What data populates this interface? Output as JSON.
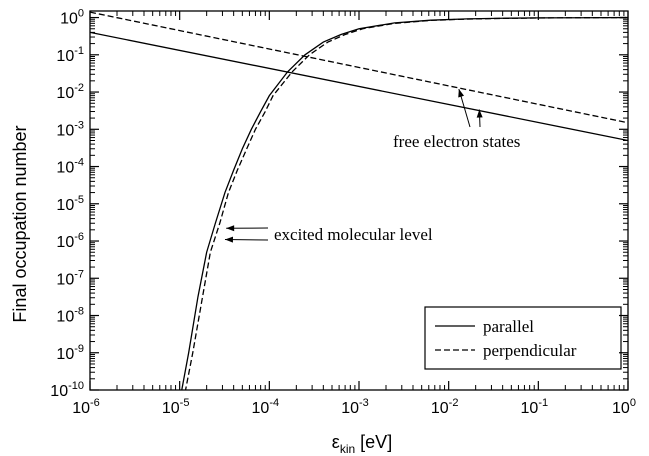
{
  "chart_data": {
    "type": "line",
    "xscale": "log",
    "yscale": "log",
    "xlim": [
      1e-06,
      1
    ],
    "ylim": [
      1e-10,
      1.5
    ],
    "x_ticks": [
      {
        "base": "10",
        "exp": "-6"
      },
      {
        "base": "10",
        "exp": "-5"
      },
      {
        "base": "10",
        "exp": "-4"
      },
      {
        "base": "10",
        "exp": "-3"
      },
      {
        "base": "10",
        "exp": "-2"
      },
      {
        "base": "10",
        "exp": "-1"
      },
      {
        "base": "10",
        "exp": "0"
      }
    ],
    "y_ticks": [
      {
        "base": "10",
        "exp": "-10"
      },
      {
        "base": "10",
        "exp": "-9"
      },
      {
        "base": "10",
        "exp": "-8"
      },
      {
        "base": "10",
        "exp": "-7"
      },
      {
        "base": "10",
        "exp": "-6"
      },
      {
        "base": "10",
        "exp": "-5"
      },
      {
        "base": "10",
        "exp": "-4"
      },
      {
        "base": "10",
        "exp": "-3"
      },
      {
        "base": "10",
        "exp": "-2"
      },
      {
        "base": "10",
        "exp": "-1"
      },
      {
        "base": "10",
        "exp": "0"
      }
    ],
    "xlabel": {
      "symbol": "ε",
      "sub": "kin",
      "unit": " [eV]"
    },
    "ylabel": "Final occupation number",
    "grid": false,
    "legend": {
      "placement": "bottom-right",
      "entries": [
        {
          "name": "parallel",
          "style": "solid"
        },
        {
          "name": "perpendicular",
          "style": "dashed"
        }
      ]
    },
    "series": [
      {
        "name": "parallel",
        "style": "solid",
        "group": "free electron states",
        "x": [
          1e-06,
          1
        ],
        "y": [
          0.4,
          0.0005
        ]
      },
      {
        "name": "perpendicular",
        "style": "dashed",
        "group": "free electron states",
        "x": [
          1e-06,
          1
        ],
        "y": [
          1.4,
          0.0015
        ]
      },
      {
        "name": "parallel",
        "style": "solid",
        "group": "excited molecular level",
        "x": [
          1e-05,
          1.26e-05,
          1.6e-05,
          2e-05,
          2.5e-05,
          3.2e-05,
          4e-05,
          5e-05,
          6.3e-05,
          8e-05,
          0.0001,
          0.00016,
          0.00025,
          0.0004,
          0.00063,
          0.001,
          0.0025,
          0.0063,
          0.016,
          0.04,
          0.1,
          0.3,
          1
        ],
        "y": [
          5e-11,
          1e-09,
          3.2e-08,
          5e-07,
          3e-06,
          2e-05,
          8e-05,
          0.0003,
          0.001,
          0.003,
          0.008,
          0.035,
          0.1,
          0.22,
          0.35,
          0.5,
          0.72,
          0.85,
          0.92,
          0.96,
          0.98,
          0.99,
          1.0
        ]
      },
      {
        "name": "perpendicular",
        "style": "dashed",
        "group": "excited molecular level",
        "x": [
          1.1e-05,
          1.4e-05,
          1.8e-05,
          2.2e-05,
          2.8e-05,
          3.5e-05,
          4.4e-05,
          5.6e-05,
          7e-05,
          9e-05,
          0.00011,
          0.00018,
          0.00028,
          0.00045,
          0.0007,
          0.0011,
          0.0025,
          0.0063,
          0.016,
          0.04,
          0.1,
          0.3,
          1
        ],
        "y": [
          5e-11,
          1e-09,
          3.2e-08,
          5e-07,
          3e-06,
          2e-05,
          8e-05,
          0.0003,
          0.001,
          0.003,
          0.008,
          0.035,
          0.1,
          0.22,
          0.35,
          0.5,
          0.7,
          0.84,
          0.91,
          0.95,
          0.975,
          0.99,
          1.0
        ]
      }
    ],
    "annotations": [
      {
        "text": "free electron states",
        "arrows_to": [
          {
            "series": "perpendicular",
            "x": 0.013,
            "y": 0.0121
          },
          {
            "series": "parallel",
            "x": 0.022,
            "y": 0.0034
          }
        ]
      },
      {
        "text": "excited molecular level",
        "arrows_to": [
          {
            "series": "parallel",
            "x": 3.3e-05,
            "y": 2.2e-06
          },
          {
            "series": "perpendicular",
            "x": 3.2e-05,
            "y": 1.1e-06
          }
        ]
      }
    ]
  }
}
